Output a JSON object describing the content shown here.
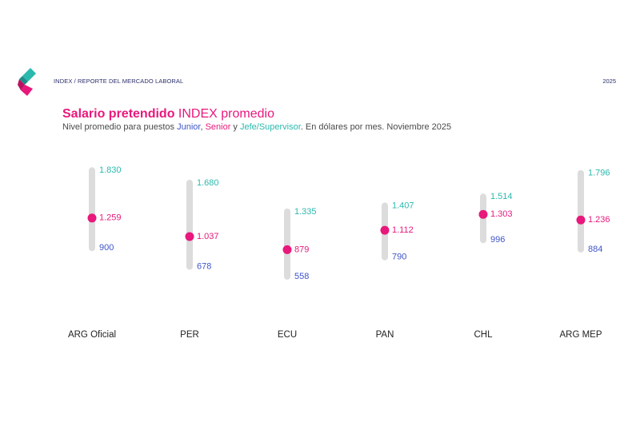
{
  "header": {
    "left_text": "INDEX / REPORTE DEL MERCADO LABORAL",
    "right_text": "2025"
  },
  "title": {
    "bold_part": "Salario pretendido",
    "rest": " INDEX promedio"
  },
  "subtitle": {
    "prefix": "Nivel promedio para puestos ",
    "junior": "Junior",
    "sep1": ", ",
    "senior": "Senior",
    "sep2": " y ",
    "jefe": "Jefe/Supervisor",
    "suffix": ". En dólares por mes. Noviembre 2025"
  },
  "colors": {
    "junior": "#3f55c8",
    "senior": "#e8187c",
    "jefe": "#2bb9ae",
    "bar": "#dcdcdc",
    "category_label": "#222222"
  },
  "chart_data": {
    "type": "range-dot",
    "categories": [
      "ARG Oficial",
      "PER",
      "ECU",
      "PAN",
      "CHL",
      "ARG MEP"
    ],
    "series": [
      {
        "name": "Junior",
        "values": [
          900,
          678,
          558,
          790,
          996,
          884
        ],
        "labels": [
          "900",
          "678",
          "558",
          "790",
          "996",
          "884"
        ]
      },
      {
        "name": "Senior",
        "values": [
          1259,
          1037,
          879,
          1112,
          1303,
          1236
        ],
        "labels": [
          "1.259",
          "1.037",
          "879",
          "1.112",
          "1.303",
          "1.236"
        ]
      },
      {
        "name": "Jefe/Supervisor",
        "values": [
          1830,
          1680,
          1335,
          1407,
          1514,
          1796
        ],
        "labels": [
          "1.830",
          "1.680",
          "1.335",
          "1.407",
          "1.514",
          "1.796"
        ]
      }
    ],
    "ylim": [
      480,
      1900
    ],
    "grid": false
  }
}
